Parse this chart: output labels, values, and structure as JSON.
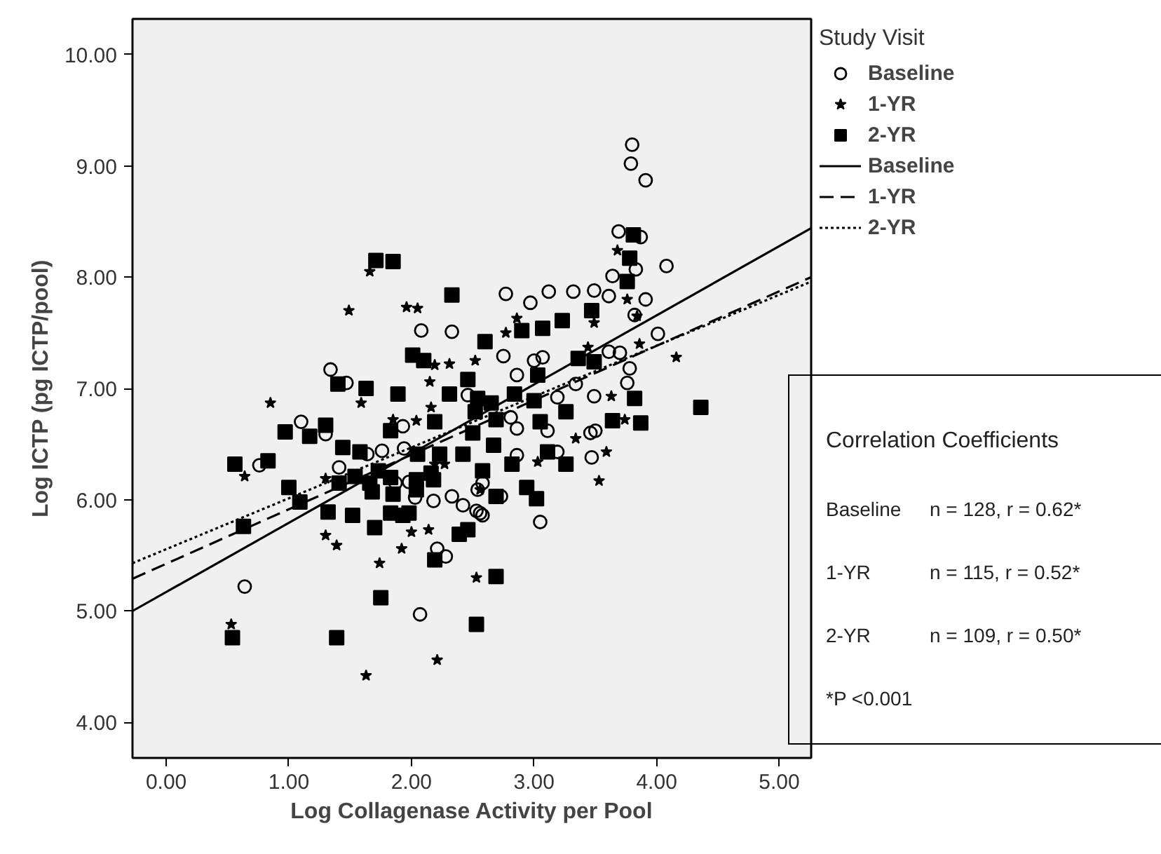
{
  "chart_data": {
    "type": "scatter",
    "xlabel": "Log Collagenase Activity per Pool",
    "ylabel": "Log ICTP (pg ICTP/pool)",
    "legend_title": "Study Visit",
    "xlim": [
      -0.275,
      5.26
    ],
    "ylim": [
      3.68,
      10.32
    ],
    "xticks": [
      {
        "value": 0,
        "label": "0.00"
      },
      {
        "value": 1,
        "label": "1.00"
      },
      {
        "value": 2,
        "label": "2.00"
      },
      {
        "value": 3,
        "label": "3.00"
      },
      {
        "value": 4,
        "label": "4.00"
      },
      {
        "value": 5,
        "label": "5.00"
      }
    ],
    "yticks": [
      {
        "value": 4,
        "label": "4.00"
      },
      {
        "value": 5,
        "label": "5.00"
      },
      {
        "value": 6,
        "label": "6.00"
      },
      {
        "value": 7,
        "label": "7.00"
      },
      {
        "value": 8,
        "label": "8.00"
      },
      {
        "value": 9,
        "label": "9.00"
      },
      {
        "value": 10,
        "label": "10.00"
      }
    ],
    "grid": false,
    "legend": "right",
    "series": [
      {
        "name": "Baseline",
        "marker": "circle",
        "color": "#000000",
        "x": [
          0.64,
          0.76,
          1.1,
          1.3,
          1.34,
          1.47,
          1.41,
          1.64,
          1.76,
          1.87,
          1.93,
          1.94,
          1.98,
          2.03,
          2.07,
          2.08,
          2.18,
          2.21,
          2.28,
          2.33,
          2.33,
          2.42,
          2.46,
          2.53,
          2.58,
          2.58,
          2.54,
          2.56,
          2.73,
          2.75,
          2.77,
          2.81,
          2.86,
          2.86,
          2.86,
          2.97,
          3.0,
          3.05,
          3.07,
          3.11,
          3.12,
          3.19,
          3.19,
          3.32,
          3.34,
          3.46,
          3.47,
          3.49,
          3.49,
          3.5,
          3.61,
          3.61,
          3.64,
          3.69,
          3.7,
          3.76,
          3.78,
          3.79,
          3.8,
          3.82,
          3.83,
          3.87,
          3.91,
          3.91,
          4.01,
          4.08
        ],
        "values": [
          5.22,
          6.31,
          6.7,
          6.59,
          7.17,
          7.05,
          6.29,
          6.41,
          6.44,
          6.15,
          6.66,
          6.46,
          6.16,
          6.02,
          4.97,
          7.52,
          5.99,
          5.56,
          5.49,
          7.51,
          6.03,
          5.95,
          6.94,
          5.9,
          5.86,
          6.15,
          6.09,
          5.88,
          6.03,
          7.29,
          7.85,
          6.74,
          6.64,
          6.4,
          7.12,
          7.77,
          7.25,
          5.8,
          7.28,
          6.62,
          7.87,
          6.92,
          6.43,
          7.87,
          7.04,
          6.6,
          6.38,
          6.93,
          7.88,
          6.62,
          7.83,
          7.33,
          8.01,
          8.41,
          7.32,
          7.05,
          7.18,
          9.02,
          9.19,
          7.66,
          8.07,
          8.36,
          8.87,
          7.8,
          7.49,
          8.1
        ]
      },
      {
        "name": "1-YR",
        "marker": "star",
        "color": "#000000",
        "x": [
          0.53,
          0.64,
          0.85,
          1.3,
          1.3,
          1.39,
          1.49,
          1.59,
          1.63,
          1.66,
          1.74,
          1.85,
          1.92,
          1.96,
          2.0,
          2.04,
          2.05,
          2.14,
          2.15,
          2.16,
          2.19,
          2.19,
          2.21,
          2.27,
          2.31,
          2.52,
          2.53,
          2.56,
          2.77,
          2.86,
          3.03,
          3.34,
          3.44,
          3.49,
          3.53,
          3.59,
          3.63,
          3.68,
          3.74,
          3.76,
          3.84,
          3.86,
          4.16
        ],
        "values": [
          4.88,
          6.21,
          6.87,
          5.68,
          6.19,
          5.59,
          7.7,
          6.87,
          4.42,
          8.05,
          5.43,
          6.72,
          5.56,
          7.73,
          5.71,
          6.71,
          7.72,
          5.73,
          7.06,
          6.83,
          7.21,
          6.32,
          4.56,
          6.32,
          7.22,
          7.25,
          5.3,
          6.09,
          7.5,
          7.63,
          6.34,
          6.55,
          7.37,
          7.59,
          6.17,
          6.43,
          6.93,
          8.24,
          6.72,
          7.8,
          7.65,
          7.4,
          7.28
        ]
      },
      {
        "name": "2-YR",
        "marker": "square",
        "color": "#000000",
        "x": [
          0.54,
          0.56,
          0.63,
          0.83,
          0.97,
          1.0,
          1.09,
          1.17,
          1.3,
          1.32,
          1.39,
          1.4,
          1.41,
          1.44,
          1.52,
          1.54,
          1.58,
          1.63,
          1.66,
          1.68,
          1.7,
          1.71,
          1.73,
          1.75,
          1.83,
          1.83,
          1.83,
          1.85,
          1.85,
          1.89,
          1.93,
          1.98,
          2.01,
          2.04,
          2.04,
          2.05,
          2.1,
          2.16,
          2.18,
          2.19,
          2.19,
          2.23,
          2.31,
          2.33,
          2.39,
          2.42,
          2.46,
          2.46,
          2.5,
          2.52,
          2.53,
          2.54,
          2.58,
          2.6,
          2.65,
          2.67,
          2.69,
          2.69,
          2.69,
          2.82,
          2.84,
          2.9,
          2.94,
          3.0,
          3.02,
          3.03,
          3.05,
          3.07,
          3.11,
          3.23,
          3.26,
          3.26,
          3.36,
          3.47,
          3.49,
          3.64,
          3.76,
          3.78,
          3.81,
          3.82,
          3.87,
          4.36
        ],
        "values": [
          4.76,
          6.32,
          5.76,
          6.35,
          6.61,
          6.11,
          5.98,
          6.57,
          6.67,
          5.89,
          4.76,
          7.04,
          6.15,
          6.47,
          5.86,
          6.21,
          6.43,
          7.0,
          6.15,
          6.07,
          5.75,
          8.15,
          6.26,
          5.12,
          6.2,
          5.88,
          6.62,
          6.05,
          8.14,
          6.95,
          5.86,
          5.88,
          7.3,
          6.18,
          6.09,
          6.41,
          7.25,
          6.24,
          6.18,
          6.7,
          5.46,
          6.41,
          6.95,
          7.84,
          5.69,
          6.41,
          7.08,
          5.73,
          6.6,
          6.79,
          4.88,
          6.91,
          6.26,
          7.42,
          6.87,
          6.49,
          6.72,
          6.03,
          5.31,
          6.32,
          6.95,
          7.52,
          6.11,
          6.89,
          6.01,
          7.12,
          6.7,
          7.54,
          6.43,
          7.61,
          6.79,
          6.32,
          7.27,
          7.7,
          7.24,
          6.71,
          7.96,
          8.17,
          8.38,
          6.91,
          6.69,
          6.83
        ]
      },
      {
        "name": "Baseline",
        "type": "line",
        "line_style": "solid",
        "color": "#000000",
        "x": [
          -0.275,
          5.26
        ],
        "values": [
          5.0,
          8.44
        ]
      },
      {
        "name": "1-YR",
        "type": "line",
        "line_style": "dashed",
        "color": "#000000",
        "x": [
          -0.275,
          5.26
        ],
        "values": [
          5.29,
          8.0
        ]
      },
      {
        "name": "2-YR",
        "type": "line",
        "line_style": "dotted",
        "color": "#000000",
        "x": [
          -0.275,
          5.26
        ],
        "values": [
          5.43,
          7.96
        ]
      }
    ],
    "annotations": [
      "Correlation Coefficients",
      "Baseline",
      "n = 128, r = 0.62*",
      "1-YR",
      "n = 115, r = 0.52*",
      "2-YR",
      "n = 109, r = 0.50*",
      "*P <0.001"
    ]
  }
}
